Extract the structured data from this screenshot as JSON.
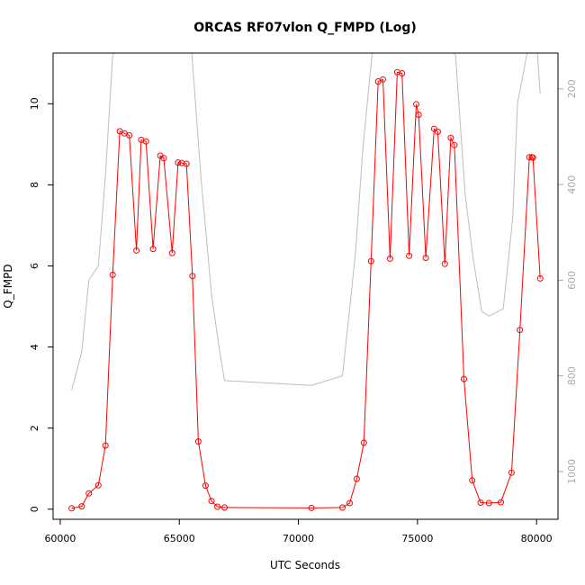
{
  "chart_data": {
    "type": "line",
    "title": "ORCAS RF07vlon Q_FMPD (Log)",
    "xlabel": "UTC Seconds",
    "ylabel": "Q_FMPD",
    "xlim": [
      59700,
      80900
    ],
    "ylim": [
      -0.25,
      11.25
    ],
    "x_ticks": [
      60000,
      65000,
      70000,
      75000,
      80000
    ],
    "x_tick_labels": [
      "60000",
      "65000",
      "70000",
      "75000",
      "80000"
    ],
    "y_ticks": [
      0,
      2,
      4,
      6,
      8,
      10
    ],
    "y_tick_labels": [
      "0",
      "2",
      "4",
      "6",
      "8",
      "10"
    ],
    "right_axis": {
      "reversed": true,
      "lim": [
        125,
        1100
      ],
      "ticks": [
        200,
        400,
        600,
        800,
        1000
      ],
      "tick_labels": [
        "200",
        "400",
        "600",
        "800",
        "1000"
      ]
    },
    "grid": false,
    "series": [
      {
        "color": "#ff0000",
        "markers": "open-circle",
        "axis": "left",
        "x": [
          60480,
          60900,
          61200,
          61600,
          61900,
          62200,
          62500,
          62700,
          62900,
          63200,
          63400,
          63600,
          63900,
          64200,
          64350,
          64700,
          64950,
          65100,
          65300,
          65550,
          65800,
          66100,
          66350,
          66600,
          66900,
          70550,
          71850,
          72150,
          72450,
          72750,
          73050,
          73350,
          73550,
          73850,
          74150,
          74350,
          74650,
          74950,
          75050,
          75350,
          75700,
          75850,
          76150,
          76400,
          76550,
          76950,
          77300,
          77650,
          78000,
          78500,
          78950,
          79300,
          79700,
          79800,
          79850,
          80150
        ],
        "y": [
          0.02,
          0.07,
          0.39,
          0.59,
          1.57,
          5.78,
          9.32,
          9.27,
          9.22,
          6.38,
          9.11,
          9.07,
          6.42,
          8.72,
          8.66,
          6.32,
          8.55,
          8.54,
          8.52,
          5.75,
          1.67,
          0.58,
          0.2,
          0.06,
          0.04,
          0.03,
          0.04,
          0.15,
          0.75,
          1.64,
          6.12,
          10.55,
          10.6,
          6.18,
          10.78,
          10.75,
          6.25,
          9.99,
          9.73,
          6.2,
          9.38,
          9.31,
          6.05,
          9.16,
          8.98,
          3.21,
          0.71,
          0.16,
          0.15,
          0.17,
          0.9,
          4.42,
          8.68,
          8.68,
          8.67,
          5.69
        ]
      },
      {
        "color": "#bebebe",
        "markers": "none",
        "axis": "right",
        "x": [
          60480,
          60900,
          61200,
          61600,
          61900,
          62200,
          62500,
          64400,
          65100,
          65500,
          65900,
          66350,
          66700,
          66900,
          70550,
          71850,
          72150,
          72400,
          72700,
          72950,
          73100,
          73300,
          73500,
          73700,
          73800,
          74000,
          74200,
          74500,
          75000,
          75400,
          75700,
          76000,
          76200,
          76600,
          77000,
          77350,
          77700,
          78000,
          78600,
          79000,
          79200,
          79700,
          79850,
          80000,
          80150
        ],
        "y": [
          830,
          750,
          600,
          570,
          380,
          130,
          100,
          100,
          100,
          110,
          380,
          630,
          750,
          810,
          820,
          800,
          660,
          540,
          330,
          200,
          125,
          110,
          100,
          100,
          100,
          100,
          100,
          100,
          100,
          100,
          100,
          100,
          100,
          130,
          420,
          560,
          665,
          675,
          660,
          470,
          230,
          100,
          100,
          100,
          210
        ]
      }
    ]
  }
}
